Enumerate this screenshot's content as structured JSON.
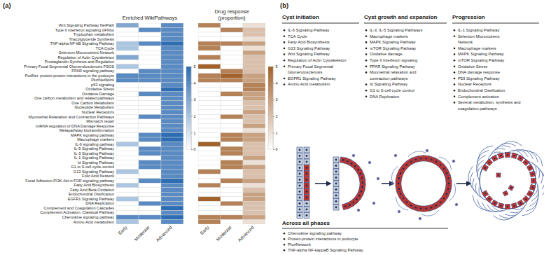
{
  "panel_labels": [
    "(a)",
    "(b)"
  ],
  "chart_data": [
    {
      "type": "heatmap",
      "title": "Enriched WikiPathways",
      "color": "#2f6db3",
      "x": [
        "Early",
        "Moderate",
        "Advanced"
      ],
      "y": [
        "Wnt Signaling Pathway NetPath",
        "Type II interferon signaling (IFNG)",
        "Tryptophan metabolism",
        "Triacylglyceride Synthesis",
        "TNF-alpha NF-kB Signaling Pathway",
        "TCA Cycle",
        "Selenium Micronutrient Network",
        "Regulation of Actin Cytoskeleton",
        "Prostaglandin Synthesis and Regulation",
        "Primary Focal Segmental Glomerulosclerosis FSGS",
        "PPAR signaling pathway",
        "PodNet: protein-protein interactions in the podocyte",
        "PluriNetWork",
        "p53 signaling",
        "Oxidative Stress",
        "Oxidative Damage",
        "One carbon metabolism and related pathways",
        "One Carbon Metabolism",
        "Nucleotide Metabolism",
        "Nuclear Receptors",
        "Myometrial Relaxation and Contraction Pathways",
        "Mismatch repair",
        "miRNA regulation of DNA Damage Response",
        "Metapathway biotransformation",
        "MAPK signaling pathway",
        "Macrophage markers",
        "IL-6 signaling pathway",
        "IL-5 Signaling Pathway",
        "IL-3 Signaling Pathway",
        "IL-1 Signaling Pathway",
        "Id Signaling Pathway",
        "G1 to S cell cycle control",
        "G13 Signaling Pathway",
        "Folic Acid Network",
        "Focal Adhesion-PI3K-Akt-mTOR-signaling pathway",
        "Fatty Acid Biosynthesis",
        "Fatty Acid Beta Oxidation",
        "Endochondral Ossification",
        "EGFR1 Signaling Pathway",
        "DNA Replication",
        "Complement and Coagulation Cascades",
        "Complement Activation, Classical Pathway",
        "Chemokine signaling pathway",
        "Amino Acid metabolism"
      ],
      "values": [
        [
          3,
          0,
          4
        ],
        [
          0,
          4,
          4
        ],
        [
          0,
          0,
          4
        ],
        [
          0,
          0,
          4
        ],
        [
          2,
          4,
          5
        ],
        [
          2,
          0,
          4
        ],
        [
          0,
          0,
          4
        ],
        [
          3,
          0,
          4
        ],
        [
          0,
          0,
          4
        ],
        [
          2,
          0,
          4
        ],
        [
          0,
          4,
          4
        ],
        [
          4,
          4,
          4
        ],
        [
          4,
          4,
          4
        ],
        [
          0,
          0,
          4
        ],
        [
          0,
          0,
          5
        ],
        [
          0,
          4,
          4
        ],
        [
          0,
          0,
          4
        ],
        [
          0,
          0,
          4
        ],
        [
          0,
          0,
          4
        ],
        [
          0,
          0,
          4
        ],
        [
          0,
          4,
          4
        ],
        [
          0,
          0,
          4
        ],
        [
          0,
          0,
          4
        ],
        [
          0,
          0,
          4
        ],
        [
          0,
          4,
          5
        ],
        [
          0,
          4,
          5
        ],
        [
          2,
          0,
          4
        ],
        [
          0,
          4,
          4
        ],
        [
          0,
          4,
          4
        ],
        [
          0,
          0,
          4
        ],
        [
          0,
          4,
          4
        ],
        [
          0,
          4,
          4
        ],
        [
          2,
          0,
          4
        ],
        [
          0,
          0,
          4
        ],
        [
          0,
          4,
          5
        ],
        [
          2,
          0,
          4
        ],
        [
          0,
          0,
          4
        ],
        [
          0,
          0,
          4
        ],
        [
          2,
          0,
          4
        ],
        [
          0,
          4,
          4
        ],
        [
          0,
          0,
          5
        ],
        [
          0,
          0,
          4
        ],
        [
          4,
          4,
          5
        ],
        [
          2,
          0,
          4
        ]
      ],
      "colorbar_range": [
        0,
        5
      ],
      "colorbar_ticks": [
        0,
        1,
        2,
        3,
        4,
        5
      ]
    },
    {
      "type": "heatmap",
      "title": "Drug response",
      "subtitle": "(proportion)",
      "color": "#a2622c",
      "x": [
        "Early",
        "Moderate",
        "Advanced"
      ],
      "tick_labels": "x",
      "values": [
        [
          4,
          0,
          1
        ],
        [
          0,
          4,
          2
        ],
        [
          0,
          0,
          2
        ],
        [
          0,
          0,
          1
        ],
        [
          4,
          4,
          3
        ],
        [
          4,
          0,
          1
        ],
        [
          0,
          0,
          3
        ],
        [
          4,
          0,
          2
        ],
        [
          0,
          0,
          2
        ],
        [
          5,
          0,
          2
        ],
        [
          0,
          4,
          2
        ],
        [
          4,
          5,
          3
        ],
        [
          4,
          4,
          3
        ],
        [
          0,
          0,
          4
        ],
        [
          0,
          0,
          4
        ],
        [
          0,
          4,
          3
        ],
        [
          0,
          0,
          3
        ],
        [
          0,
          0,
          2
        ],
        [
          0,
          0,
          2
        ],
        [
          0,
          0,
          3
        ],
        [
          0,
          4,
          2
        ],
        [
          0,
          0,
          2
        ],
        [
          0,
          0,
          3
        ],
        [
          0,
          0,
          1
        ],
        [
          0,
          4,
          3
        ],
        [
          0,
          4,
          3
        ],
        [
          5,
          0,
          2
        ],
        [
          0,
          4,
          2
        ],
        [
          0,
          4,
          2
        ],
        [
          0,
          0,
          3
        ],
        [
          0,
          4,
          1
        ],
        [
          0,
          4,
          3
        ],
        [
          4,
          0,
          2
        ],
        [
          0,
          0,
          2
        ],
        [
          0,
          4,
          3
        ],
        [
          4,
          0,
          1
        ],
        [
          0,
          0,
          2
        ],
        [
          0,
          0,
          3
        ],
        [
          5,
          0,
          3
        ],
        [
          0,
          4,
          2
        ],
        [
          0,
          0,
          2
        ],
        [
          0,
          0,
          2
        ],
        [
          4,
          4,
          3
        ],
        [
          4,
          0,
          1
        ]
      ],
      "colorbar_range": [
        0,
        5
      ],
      "colorbar_ticks": [
        0,
        1,
        2,
        3,
        4,
        5
      ]
    }
  ],
  "diagram": {
    "phases": [
      {
        "title": "Cyst initiation",
        "items": [
          "IL-6 Signaling Pathway",
          "TCA Cycle",
          "Fatty Acid Biosynthesis",
          "G13 Signaling Pathway",
          "Wnt Signaling Pathway",
          "Regulation of Actin Cytoskeleton",
          [
            "Primary Focal Segmental",
            "Glomerulosclerosis"
          ],
          "EGFR1 Signaling Pathway",
          "Amino Acid metabolism"
        ]
      },
      {
        "title": "Cyst growth and expansion",
        "items": [
          "IL-3, IL-5 Signaling Pathways",
          "Macrophage markers",
          "MAPK Signaling Pathway",
          "mTOR Signaling Pathway",
          "Oxidative damage",
          "Type II Interferon signaling",
          "PPAR Signaling Pathway",
          [
            "Myometrial relaxation and",
            "contraction pathways"
          ],
          "Id Signaling Pathway",
          "G1 to S cell cycle control",
          "DNA Replication"
        ]
      },
      {
        "title": "Progression",
        "items": [
          "IL-1 Signaling Pathway",
          [
            "Selenium Micronutrient",
            "Network"
          ],
          "Macrophage markers",
          "MAPK Signaling Pathway",
          "mTOR Signaling Pathway",
          "Oxidative Stress",
          "DNA damage response",
          "P53 Signaling Pathway",
          "Nuclear Receptors",
          "Endochondral Ossification",
          "Complement activation",
          [
            "Several metabolism, synthesis and",
            "coagulation pathways"
          ]
        ]
      }
    ],
    "across": {
      "title": "Across all phases",
      "items": [
        "Chemokine signaling pathway",
        "Protein-protein interactions in podocyte",
        "PluriNetwork",
        "TNF-alpha NF-kappaB Signaling Pathway"
      ]
    }
  }
}
